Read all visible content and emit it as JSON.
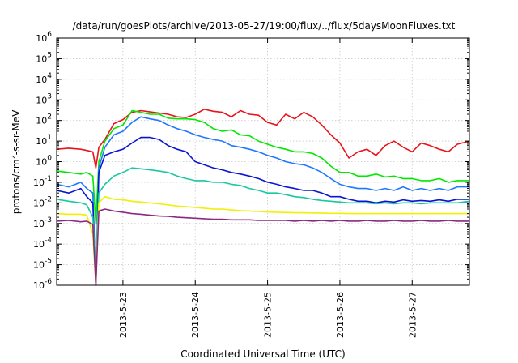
{
  "chart_data": {
    "type": "line",
    "title": "/data/run/goesPlots/archive/2013-05-27/19:00/flux/../flux/5daysMoonFluxes.txt",
    "xlabel": "Coordinated Universal Time (UTC)",
    "ylabel_base": "protons/cm",
    "ylabel_sup": "2",
    "ylabel_tail": "-s-sr-MeV",
    "x_is_date": true,
    "xlim": [
      "2013-05-22T02:00",
      "2013-05-27T19:00"
    ],
    "x_ticks": [
      "2013-5-23",
      "2013-5-24",
      "2013-5-25",
      "2013-5-26",
      "2013-5-27"
    ],
    "y_scale": "log",
    "ylim": [
      1e-06,
      1000000.0
    ],
    "y_ticks": [
      {
        "base": "10",
        "exp": "-6"
      },
      {
        "base": "10",
        "exp": "-5"
      },
      {
        "base": "10",
        "exp": "-4"
      },
      {
        "base": "10",
        "exp": "-3"
      },
      {
        "base": "10",
        "exp": "-2"
      },
      {
        "base": "10",
        "exp": "-1"
      },
      {
        "base": "10",
        "exp": "0"
      },
      {
        "base": "10",
        "exp": "1"
      },
      {
        "base": "10",
        "exp": "2"
      },
      {
        "base": "10",
        "exp": "3"
      },
      {
        "base": "10",
        "exp": "4"
      },
      {
        "base": "10",
        "exp": "5"
      },
      {
        "base": "10",
        "exp": "6"
      }
    ],
    "grid": true,
    "series": [
      {
        "color": "#e8141c",
        "x": [
          "2013-05-22T02:00",
          "2013-05-22T06:00",
          "2013-05-22T10:00",
          "2013-05-22T12:00",
          "2013-05-22T14:00",
          "2013-05-22T15:00",
          "2013-05-22T16:00",
          "2013-05-22T18:00",
          "2013-05-22T21:00",
          "2013-05-23T00:00",
          "2013-05-23T03:00",
          "2013-05-23T06:00",
          "2013-05-23T09:00",
          "2013-05-23T12:00",
          "2013-05-23T15:00",
          "2013-05-23T18:00",
          "2013-05-23T21:00",
          "2013-05-24T00:00",
          "2013-05-24T03:00",
          "2013-05-24T06:00",
          "2013-05-24T09:00",
          "2013-05-24T12:00",
          "2013-05-24T15:00",
          "2013-05-24T18:00",
          "2013-05-24T21:00",
          "2013-05-25T00:00",
          "2013-05-25T03:00",
          "2013-05-25T06:00",
          "2013-05-25T09:00",
          "2013-05-25T12:00",
          "2013-05-25T15:00",
          "2013-05-25T18:00",
          "2013-05-25T21:00",
          "2013-05-26T00:00",
          "2013-05-26T03:00",
          "2013-05-26T06:00",
          "2013-05-26T09:00",
          "2013-05-26T12:00",
          "2013-05-26T15:00",
          "2013-05-26T18:00",
          "2013-05-26T21:00",
          "2013-05-27T00:00",
          "2013-05-27T03:00",
          "2013-05-27T06:00",
          "2013-05-27T09:00",
          "2013-05-27T12:00",
          "2013-05-27T15:00",
          "2013-05-27T19:00"
        ],
        "y": [
          4,
          4.5,
          4,
          3.5,
          3.0,
          0.5,
          5,
          12,
          70,
          110,
          250,
          300,
          260,
          230,
          200,
          150,
          140,
          200,
          350,
          280,
          250,
          150,
          300,
          200,
          180,
          80,
          60,
          200,
          120,
          250,
          150,
          60,
          20,
          8,
          1.5,
          3,
          4,
          2,
          6,
          10,
          5,
          3,
          8,
          6,
          4,
          3,
          7,
          10
        ]
      },
      {
        "color": "#00e800",
        "x": [
          "2013-05-22T02:00",
          "2013-05-22T06:00",
          "2013-05-22T10:00",
          "2013-05-22T12:00",
          "2013-05-22T14:00",
          "2013-05-22T15:00",
          "2013-05-22T16:00",
          "2013-05-22T18:00",
          "2013-05-22T21:00",
          "2013-05-23T00:00",
          "2013-05-23T03:00",
          "2013-05-23T06:00",
          "2013-05-23T09:00",
          "2013-05-23T12:00",
          "2013-05-23T15:00",
          "2013-05-23T18:00",
          "2013-05-23T21:00",
          "2013-05-24T00:00",
          "2013-05-24T03:00",
          "2013-05-24T06:00",
          "2013-05-24T09:00",
          "2013-05-24T12:00",
          "2013-05-24T15:00",
          "2013-05-24T18:00",
          "2013-05-24T21:00",
          "2013-05-25T00:00",
          "2013-05-25T03:00",
          "2013-05-25T06:00",
          "2013-05-25T09:00",
          "2013-05-25T12:00",
          "2013-05-25T15:00",
          "2013-05-25T18:00",
          "2013-05-25T21:00",
          "2013-05-26T00:00",
          "2013-05-26T03:00",
          "2013-05-26T06:00",
          "2013-05-26T09:00",
          "2013-05-26T12:00",
          "2013-05-26T15:00",
          "2013-05-26T18:00",
          "2013-05-26T21:00",
          "2013-05-27T00:00",
          "2013-05-27T03:00",
          "2013-05-27T06:00",
          "2013-05-27T09:00",
          "2013-05-27T12:00",
          "2013-05-27T15:00",
          "2013-05-27T19:00"
        ],
        "y": [
          0.35,
          0.3,
          0.25,
          0.3,
          0.2,
          0.001,
          1,
          10,
          40,
          60,
          300,
          250,
          200,
          200,
          130,
          120,
          120,
          110,
          80,
          40,
          30,
          35,
          20,
          18,
          10,
          7,
          5,
          4,
          3,
          3,
          2.5,
          1.5,
          0.6,
          0.3,
          0.3,
          0.2,
          0.2,
          0.25,
          0.18,
          0.2,
          0.15,
          0.15,
          0.12,
          0.12,
          0.15,
          0.1,
          0.12,
          0.12
        ]
      },
      {
        "color": "#1e78ff",
        "x": [
          "2013-05-22T02:00",
          "2013-05-22T06:00",
          "2013-05-22T10:00",
          "2013-05-22T12:00",
          "2013-05-22T14:00",
          "2013-05-22T15:00",
          "2013-05-22T16:00",
          "2013-05-22T18:00",
          "2013-05-22T21:00",
          "2013-05-23T00:00",
          "2013-05-23T03:00",
          "2013-05-23T06:00",
          "2013-05-23T09:00",
          "2013-05-23T12:00",
          "2013-05-23T15:00",
          "2013-05-23T18:00",
          "2013-05-23T21:00",
          "2013-05-24T00:00",
          "2013-05-24T03:00",
          "2013-05-24T06:00",
          "2013-05-24T09:00",
          "2013-05-24T12:00",
          "2013-05-24T15:00",
          "2013-05-24T18:00",
          "2013-05-24T21:00",
          "2013-05-25T00:00",
          "2013-05-25T03:00",
          "2013-05-25T06:00",
          "2013-05-25T09:00",
          "2013-05-25T12:00",
          "2013-05-25T15:00",
          "2013-05-25T18:00",
          "2013-05-25T21:00",
          "2013-05-26T00:00",
          "2013-05-26T03:00",
          "2013-05-26T06:00",
          "2013-05-26T09:00",
          "2013-05-26T12:00",
          "2013-05-26T15:00",
          "2013-05-26T18:00",
          "2013-05-26T21:00",
          "2013-05-27T00:00",
          "2013-05-27T03:00",
          "2013-05-27T06:00",
          "2013-05-27T09:00",
          "2013-05-27T12:00",
          "2013-05-27T15:00",
          "2013-05-27T19:00"
        ],
        "y": [
          0.08,
          0.06,
          0.1,
          0.05,
          0.03,
          1e-06,
          0.5,
          5,
          20,
          30,
          80,
          150,
          120,
          100,
          60,
          40,
          30,
          20,
          15,
          12,
          10,
          6,
          5,
          4,
          3,
          2,
          1.5,
          1.0,
          0.8,
          0.7,
          0.5,
          0.3,
          0.15,
          0.08,
          0.06,
          0.05,
          0.05,
          0.04,
          0.05,
          0.04,
          0.06,
          0.04,
          0.05,
          0.04,
          0.05,
          0.04,
          0.06,
          0.06
        ]
      },
      {
        "color": "#0a14d2",
        "x": [
          "2013-05-22T02:00",
          "2013-05-22T06:00",
          "2013-05-22T10:00",
          "2013-05-22T12:00",
          "2013-05-22T14:00",
          "2013-05-22T15:00",
          "2013-05-22T16:00",
          "2013-05-22T18:00",
          "2013-05-22T21:00",
          "2013-05-23T00:00",
          "2013-05-23T03:00",
          "2013-05-23T06:00",
          "2013-05-23T09:00",
          "2013-05-23T12:00",
          "2013-05-23T15:00",
          "2013-05-23T18:00",
          "2013-05-23T21:00",
          "2013-05-24T00:00",
          "2013-05-24T03:00",
          "2013-05-24T06:00",
          "2013-05-24T09:00",
          "2013-05-24T12:00",
          "2013-05-24T15:00",
          "2013-05-24T18:00",
          "2013-05-24T21:00",
          "2013-05-25T00:00",
          "2013-05-25T03:00",
          "2013-05-25T06:00",
          "2013-05-25T09:00",
          "2013-05-25T12:00",
          "2013-05-25T15:00",
          "2013-05-25T18:00",
          "2013-05-25T21:00",
          "2013-05-26T00:00",
          "2013-05-26T03:00",
          "2013-05-26T06:00",
          "2013-05-26T09:00",
          "2013-05-26T12:00",
          "2013-05-26T15:00",
          "2013-05-26T18:00",
          "2013-05-26T21:00",
          "2013-05-27T00:00",
          "2013-05-27T03:00",
          "2013-05-27T06:00",
          "2013-05-27T09:00",
          "2013-05-27T12:00",
          "2013-05-27T15:00",
          "2013-05-27T19:00"
        ],
        "y": [
          0.04,
          0.03,
          0.05,
          0.02,
          0.01,
          1e-06,
          0.3,
          2,
          3,
          4,
          8,
          15,
          15,
          12,
          6,
          4,
          3,
          1.0,
          0.7,
          0.5,
          0.4,
          0.3,
          0.25,
          0.2,
          0.15,
          0.1,
          0.08,
          0.06,
          0.05,
          0.04,
          0.04,
          0.03,
          0.02,
          0.02,
          0.015,
          0.012,
          0.012,
          0.01,
          0.012,
          0.011,
          0.014,
          0.012,
          0.013,
          0.012,
          0.014,
          0.012,
          0.015,
          0.015
        ]
      },
      {
        "color": "#18c8a0",
        "x": [
          "2013-05-22T02:00",
          "2013-05-22T06:00",
          "2013-05-22T10:00",
          "2013-05-22T12:00",
          "2013-05-22T14:00",
          "2013-05-22T15:00",
          "2013-05-22T16:00",
          "2013-05-22T18:00",
          "2013-05-22T21:00",
          "2013-05-23T00:00",
          "2013-05-23T03:00",
          "2013-05-23T06:00",
          "2013-05-23T09:00",
          "2013-05-23T12:00",
          "2013-05-23T15:00",
          "2013-05-23T18:00",
          "2013-05-23T21:00",
          "2013-05-24T00:00",
          "2013-05-24T03:00",
          "2013-05-24T06:00",
          "2013-05-24T09:00",
          "2013-05-24T12:00",
          "2013-05-24T15:00",
          "2013-05-24T18:00",
          "2013-05-24T21:00",
          "2013-05-25T00:00",
          "2013-05-25T03:00",
          "2013-05-25T06:00",
          "2013-05-25T09:00",
          "2013-05-25T12:00",
          "2013-05-25T15:00",
          "2013-05-25T18:00",
          "2013-05-25T21:00",
          "2013-05-26T00:00",
          "2013-05-26T03:00",
          "2013-05-26T06:00",
          "2013-05-26T09:00",
          "2013-05-26T12:00",
          "2013-05-26T15:00",
          "2013-05-26T18:00",
          "2013-05-26T21:00",
          "2013-05-27T00:00",
          "2013-05-27T03:00",
          "2013-05-27T06:00",
          "2013-05-27T09:00",
          "2013-05-27T12:00",
          "2013-05-27T15:00",
          "2013-05-27T19:00"
        ],
        "y": [
          0.015,
          0.012,
          0.01,
          0.008,
          0.002,
          6e-06,
          0.03,
          0.08,
          0.2,
          0.3,
          0.5,
          0.45,
          0.4,
          0.35,
          0.3,
          0.2,
          0.15,
          0.12,
          0.12,
          0.1,
          0.1,
          0.08,
          0.07,
          0.05,
          0.04,
          0.03,
          0.03,
          0.025,
          0.02,
          0.018,
          0.015,
          0.013,
          0.012,
          0.011,
          0.01,
          0.01,
          0.01,
          0.009,
          0.01,
          0.009,
          0.01,
          0.01,
          0.009,
          0.01,
          0.01,
          0.01,
          0.01,
          0.012
        ]
      },
      {
        "color": "#f0f000",
        "x": [
          "2013-05-22T02:00",
          "2013-05-22T06:00",
          "2013-05-22T10:00",
          "2013-05-22T12:00",
          "2013-05-22T14:00",
          "2013-05-22T15:00",
          "2013-05-22T16:00",
          "2013-05-22T18:00",
          "2013-05-22T21:00",
          "2013-05-23T00:00",
          "2013-05-23T03:00",
          "2013-05-23T06:00",
          "2013-05-23T09:00",
          "2013-05-23T12:00",
          "2013-05-23T15:00",
          "2013-05-23T18:00",
          "2013-05-23T21:00",
          "2013-05-24T00:00",
          "2013-05-24T03:00",
          "2013-05-24T06:00",
          "2013-05-24T09:00",
          "2013-05-24T12:00",
          "2013-05-24T15:00",
          "2013-05-24T18:00",
          "2013-05-24T21:00",
          "2013-05-25T00:00",
          "2013-05-25T03:00",
          "2013-05-25T06:00",
          "2013-05-25T09:00",
          "2013-05-25T12:00",
          "2013-05-25T15:00",
          "2013-05-25T18:00",
          "2013-05-25T21:00",
          "2013-05-26T00:00",
          "2013-05-26T03:00",
          "2013-05-26T06:00",
          "2013-05-26T09:00",
          "2013-05-26T12:00",
          "2013-05-26T15:00",
          "2013-05-26T18:00",
          "2013-05-26T21:00",
          "2013-05-27T00:00",
          "2013-05-27T03:00",
          "2013-05-27T06:00",
          "2013-05-27T09:00",
          "2013-05-27T12:00",
          "2013-05-27T15:00",
          "2013-05-27T19:00"
        ],
        "y": [
          0.003,
          0.0028,
          0.0028,
          0.0025,
          0.0003,
          1e-06,
          0.01,
          0.02,
          0.015,
          0.014,
          0.012,
          0.011,
          0.01,
          0.009,
          0.008,
          0.007,
          0.0065,
          0.006,
          0.0055,
          0.005,
          0.005,
          0.0045,
          0.0042,
          0.004,
          0.0038,
          0.0036,
          0.0035,
          0.0034,
          0.0033,
          0.0033,
          0.0032,
          0.0032,
          0.0031,
          0.0031,
          0.003,
          0.003,
          0.003,
          0.003,
          0.003,
          0.003,
          0.003,
          0.003,
          0.003,
          0.003,
          0.003,
          0.003,
          0.003,
          0.003
        ]
      },
      {
        "color": "#8c2882",
        "x": [
          "2013-05-22T02:00",
          "2013-05-22T06:00",
          "2013-05-22T10:00",
          "2013-05-22T12:00",
          "2013-05-22T14:00",
          "2013-05-22T15:00",
          "2013-05-22T16:00",
          "2013-05-22T18:00",
          "2013-05-22T21:00",
          "2013-05-23T00:00",
          "2013-05-23T03:00",
          "2013-05-23T06:00",
          "2013-05-23T09:00",
          "2013-05-23T12:00",
          "2013-05-23T15:00",
          "2013-05-23T18:00",
          "2013-05-23T21:00",
          "2013-05-24T00:00",
          "2013-05-24T03:00",
          "2013-05-24T06:00",
          "2013-05-24T09:00",
          "2013-05-24T12:00",
          "2013-05-24T15:00",
          "2013-05-24T18:00",
          "2013-05-24T21:00",
          "2013-05-25T00:00",
          "2013-05-25T03:00",
          "2013-05-25T06:00",
          "2013-05-25T09:00",
          "2013-05-25T12:00",
          "2013-05-25T15:00",
          "2013-05-25T18:00",
          "2013-05-25T21:00",
          "2013-05-26T00:00",
          "2013-05-26T03:00",
          "2013-05-26T06:00",
          "2013-05-26T09:00",
          "2013-05-26T12:00",
          "2013-05-26T15:00",
          "2013-05-26T18:00",
          "2013-05-26T21:00",
          "2013-05-27T00:00",
          "2013-05-27T03:00",
          "2013-05-27T06:00",
          "2013-05-27T09:00",
          "2013-05-27T12:00",
          "2013-05-27T15:00",
          "2013-05-27T19:00"
        ],
        "y": [
          0.0013,
          0.0014,
          0.0012,
          0.0013,
          0.0009,
          1e-06,
          0.004,
          0.005,
          0.004,
          0.0035,
          0.003,
          0.0028,
          0.0025,
          0.0023,
          0.0022,
          0.002,
          0.0019,
          0.0018,
          0.0017,
          0.0016,
          0.0016,
          0.0015,
          0.0015,
          0.0015,
          0.0014,
          0.0014,
          0.0014,
          0.0014,
          0.0013,
          0.0014,
          0.0013,
          0.0014,
          0.0013,
          0.0014,
          0.0013,
          0.0013,
          0.0014,
          0.0013,
          0.0013,
          0.0014,
          0.0013,
          0.0013,
          0.0014,
          0.0013,
          0.0013,
          0.0014,
          0.0013,
          0.0013
        ]
      }
    ]
  }
}
